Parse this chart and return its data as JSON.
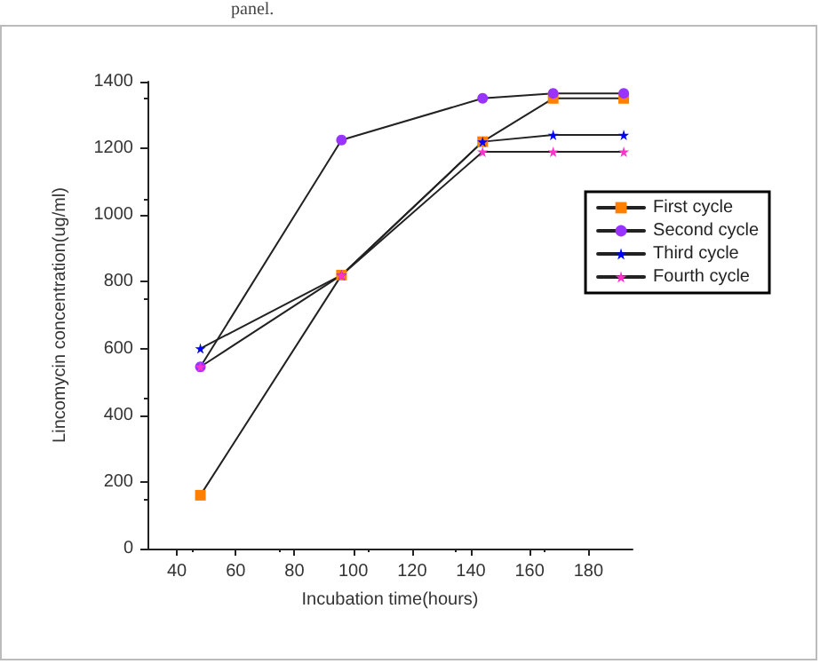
{
  "chart_data": {
    "type": "line",
    "xlabel": "Incubation time(hours)",
    "ylabel": "Lincomycin concentration(ug/ml)",
    "annotations": [
      "panel."
    ],
    "x": [
      48,
      96,
      144,
      168,
      192
    ],
    "series": [
      {
        "name": "First cycle",
        "color": "#ff8000",
        "marker": "square",
        "values": [
          160,
          820,
          1220,
          1350,
          1350
        ]
      },
      {
        "name": "Second cycle",
        "color": "#9933ff",
        "marker": "circle",
        "values": [
          545,
          1225,
          1350,
          1365,
          1365
        ]
      },
      {
        "name": "Third cycle",
        "color": "#0000ff",
        "marker": "star",
        "values": [
          600,
          820,
          1220,
          1240,
          1240
        ]
      },
      {
        "name": "Fourth cycle",
        "color": "#ff33cc",
        "marker": "star",
        "values": [
          545,
          820,
          1190,
          1190,
          1190
        ]
      }
    ],
    "xlim": [
      30,
      195
    ],
    "xticks": [
      40,
      60,
      80,
      100,
      120,
      140,
      160,
      180
    ],
    "ylim": [
      0,
      1400
    ],
    "yticks": [
      0,
      200,
      400,
      600,
      800,
      1000,
      1200,
      1400
    ],
    "grid": false,
    "legend": "right",
    "line_style": "solid"
  }
}
